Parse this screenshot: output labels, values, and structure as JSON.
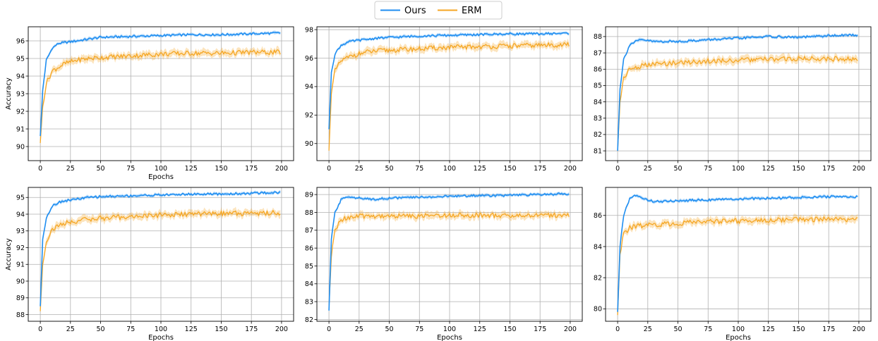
{
  "legend": {
    "placement": "top-center",
    "entries": [
      {
        "label": "Ours",
        "color": "#1f8ef1"
      },
      {
        "label": "ERM",
        "color": "#f5a623"
      }
    ]
  },
  "chart_data": [
    {
      "type": "line",
      "xlabel": "Epochs",
      "ylabel": "Accuracy",
      "xlim": [
        -10,
        210
      ],
      "ylim": [
        89.2,
        96.8
      ],
      "xticks": [
        0,
        25,
        50,
        75,
        100,
        125,
        150,
        175,
        200
      ],
      "yticks": [
        90,
        91,
        92,
        93,
        94,
        95,
        96
      ],
      "grid": true,
      "series": [
        {
          "name": "Ours",
          "color": "#1f8ef1",
          "x": [
            0,
            2,
            5,
            10,
            15,
            20,
            30,
            40,
            50,
            75,
            100,
            125,
            150,
            175,
            200
          ],
          "y": [
            90.6,
            93.2,
            94.9,
            95.6,
            95.85,
            95.9,
            96.0,
            96.1,
            96.2,
            96.25,
            96.3,
            96.35,
            96.35,
            96.4,
            96.45
          ]
        },
        {
          "name": "ERM",
          "color": "#f5a623",
          "x": [
            0,
            2,
            5,
            10,
            15,
            20,
            30,
            40,
            50,
            75,
            100,
            125,
            150,
            175,
            200
          ],
          "y": [
            90.2,
            92.3,
            93.6,
            94.3,
            94.5,
            94.7,
            94.9,
            95.0,
            95.05,
            95.15,
            95.25,
            95.3,
            95.3,
            95.35,
            95.35
          ]
        }
      ]
    },
    {
      "type": "line",
      "xlabel": "",
      "ylabel": "",
      "xlim": [
        -10,
        210
      ],
      "ylim": [
        88.8,
        98.2
      ],
      "xticks": [
        0,
        25,
        50,
        75,
        100,
        125,
        150,
        175,
        200
      ],
      "yticks": [
        90,
        92,
        94,
        96,
        98
      ],
      "grid": true,
      "series": [
        {
          "name": "Ours",
          "color": "#1f8ef1",
          "x": [
            0,
            2,
            5,
            10,
            15,
            20,
            30,
            40,
            50,
            75,
            100,
            125,
            150,
            175,
            200
          ],
          "y": [
            91.0,
            95.0,
            96.3,
            96.9,
            97.1,
            97.2,
            97.3,
            97.4,
            97.45,
            97.55,
            97.6,
            97.65,
            97.7,
            97.7,
            97.75
          ]
        },
        {
          "name": "ERM",
          "color": "#f5a623",
          "x": [
            0,
            2,
            5,
            10,
            15,
            20,
            30,
            40,
            50,
            75,
            100,
            125,
            150,
            175,
            200
          ],
          "y": [
            89.5,
            93.5,
            95.1,
            95.8,
            96.0,
            96.2,
            96.4,
            96.5,
            96.55,
            96.65,
            96.75,
            96.8,
            96.85,
            96.9,
            96.95
          ]
        }
      ]
    },
    {
      "type": "line",
      "xlabel": "",
      "ylabel": "",
      "xlim": [
        -10,
        210
      ],
      "ylim": [
        80.4,
        88.6
      ],
      "xticks": [
        0,
        25,
        50,
        75,
        100,
        125,
        150,
        175,
        200
      ],
      "yticks": [
        81,
        82,
        83,
        84,
        85,
        86,
        87,
        88
      ],
      "grid": true,
      "series": [
        {
          "name": "Ours",
          "color": "#1f8ef1",
          "x": [
            0,
            2,
            5,
            10,
            15,
            20,
            30,
            40,
            50,
            75,
            100,
            125,
            150,
            175,
            200
          ],
          "y": [
            81.0,
            84.8,
            86.6,
            87.5,
            87.7,
            87.8,
            87.7,
            87.7,
            87.7,
            87.8,
            87.9,
            88.0,
            87.95,
            88.05,
            88.1
          ]
        },
        {
          "name": "ERM",
          "color": "#f5a623",
          "x": [
            0,
            2,
            5,
            10,
            15,
            20,
            30,
            40,
            50,
            75,
            100,
            125,
            150,
            175,
            200
          ],
          "y": [
            81.0,
            84.0,
            85.5,
            86.0,
            86.1,
            86.2,
            86.3,
            86.35,
            86.4,
            86.5,
            86.55,
            86.6,
            86.65,
            86.65,
            86.6
          ]
        }
      ]
    },
    {
      "type": "line",
      "xlabel": "Epochs",
      "ylabel": "Accuracy",
      "xlim": [
        -10,
        210
      ],
      "ylim": [
        87.6,
        95.6
      ],
      "xticks": [
        0,
        25,
        50,
        75,
        100,
        125,
        150,
        175,
        200
      ],
      "yticks": [
        88,
        89,
        90,
        91,
        92,
        93,
        94,
        95
      ],
      "grid": true,
      "series": [
        {
          "name": "Ours",
          "color": "#1f8ef1",
          "x": [
            0,
            2,
            5,
            10,
            15,
            20,
            30,
            40,
            50,
            75,
            100,
            125,
            150,
            175,
            200
          ],
          "y": [
            88.5,
            92.5,
            93.8,
            94.5,
            94.7,
            94.8,
            94.9,
            95.0,
            95.05,
            95.1,
            95.15,
            95.2,
            95.2,
            95.25,
            95.3
          ]
        },
        {
          "name": "ERM",
          "color": "#f5a623",
          "x": [
            0,
            2,
            5,
            10,
            15,
            20,
            30,
            40,
            50,
            75,
            100,
            125,
            150,
            175,
            200
          ],
          "y": [
            88.2,
            91.0,
            92.4,
            93.1,
            93.3,
            93.45,
            93.6,
            93.7,
            93.75,
            93.85,
            93.95,
            94.0,
            94.05,
            94.05,
            94.1
          ]
        }
      ]
    },
    {
      "type": "line",
      "xlabel": "Epochs",
      "ylabel": "",
      "xlim": [
        -10,
        210
      ],
      "ylim": [
        81.9,
        89.4
      ],
      "xticks": [
        0,
        25,
        50,
        75,
        100,
        125,
        150,
        175,
        200
      ],
      "yticks": [
        82,
        83,
        84,
        85,
        86,
        87,
        88,
        89
      ],
      "grid": true,
      "series": [
        {
          "name": "Ours",
          "color": "#1f8ef1",
          "x": [
            0,
            2,
            5,
            10,
            15,
            20,
            30,
            40,
            50,
            75,
            100,
            125,
            150,
            175,
            200
          ],
          "y": [
            82.5,
            86.5,
            88.0,
            88.7,
            88.9,
            88.85,
            88.75,
            88.75,
            88.8,
            88.85,
            88.9,
            88.95,
            88.95,
            89.0,
            89.05
          ]
        },
        {
          "name": "ERM",
          "color": "#f5a623",
          "x": [
            0,
            2,
            5,
            10,
            15,
            20,
            30,
            40,
            50,
            75,
            100,
            125,
            150,
            175,
            200
          ],
          "y": [
            82.7,
            85.5,
            87.0,
            87.6,
            87.7,
            87.75,
            87.8,
            87.8,
            87.8,
            87.8,
            87.85,
            87.85,
            87.8,
            87.85,
            87.85
          ]
        }
      ]
    },
    {
      "type": "line",
      "xlabel": "Epochs",
      "ylabel": "",
      "xlim": [
        -10,
        210
      ],
      "ylim": [
        79.2,
        87.8
      ],
      "xticks": [
        0,
        25,
        50,
        75,
        100,
        125,
        150,
        175,
        200
      ],
      "yticks": [
        80,
        82,
        84,
        86
      ],
      "grid": true,
      "series": [
        {
          "name": "Ours",
          "color": "#1f8ef1",
          "x": [
            0,
            2,
            5,
            10,
            15,
            20,
            30,
            40,
            50,
            75,
            100,
            125,
            150,
            175,
            200
          ],
          "y": [
            79.8,
            84.0,
            86.0,
            87.1,
            87.3,
            87.1,
            86.9,
            86.9,
            86.95,
            87.0,
            87.05,
            87.1,
            87.15,
            87.2,
            87.2
          ]
        },
        {
          "name": "ERM",
          "color": "#f5a623",
          "x": [
            0,
            2,
            5,
            10,
            15,
            20,
            30,
            40,
            50,
            75,
            100,
            125,
            150,
            175,
            200
          ],
          "y": [
            79.6,
            83.5,
            84.8,
            85.2,
            85.3,
            85.35,
            85.4,
            85.45,
            85.5,
            85.6,
            85.65,
            85.7,
            85.75,
            85.75,
            85.7
          ]
        }
      ]
    }
  ]
}
